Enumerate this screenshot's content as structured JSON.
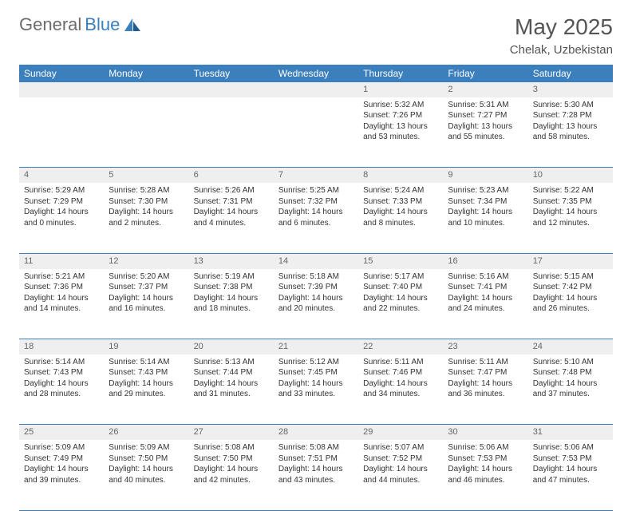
{
  "logo": {
    "part1": "General",
    "part2": "Blue"
  },
  "title": "May 2025",
  "location": "Chelak, Uzbekistan",
  "colors": {
    "header_bg": "#3b7fbd",
    "header_text": "#ffffff",
    "daynum_bg": "#efefef",
    "daynum_text": "#666666",
    "cell_text": "#333333",
    "border": "#3b7fbd",
    "page_bg": "#ffffff",
    "logo_gray": "#6c6c6c",
    "logo_blue": "#3b7fbd"
  },
  "typography": {
    "title_fontsize": 28,
    "location_fontsize": 15,
    "header_fontsize": 12,
    "cell_fontsize": 10,
    "daynum_fontsize": 11
  },
  "weekdays": [
    "Sunday",
    "Monday",
    "Tuesday",
    "Wednesday",
    "Thursday",
    "Friday",
    "Saturday"
  ],
  "weeks": [
    {
      "nums": [
        "",
        "",
        "",
        "",
        "1",
        "2",
        "3"
      ],
      "cells": [
        {
          "sunrise": "",
          "sunset": "",
          "daylight": ""
        },
        {
          "sunrise": "",
          "sunset": "",
          "daylight": ""
        },
        {
          "sunrise": "",
          "sunset": "",
          "daylight": ""
        },
        {
          "sunrise": "",
          "sunset": "",
          "daylight": ""
        },
        {
          "sunrise": "Sunrise: 5:32 AM",
          "sunset": "Sunset: 7:26 PM",
          "daylight": "Daylight: 13 hours and 53 minutes."
        },
        {
          "sunrise": "Sunrise: 5:31 AM",
          "sunset": "Sunset: 7:27 PM",
          "daylight": "Daylight: 13 hours and 55 minutes."
        },
        {
          "sunrise": "Sunrise: 5:30 AM",
          "sunset": "Sunset: 7:28 PM",
          "daylight": "Daylight: 13 hours and 58 minutes."
        }
      ]
    },
    {
      "nums": [
        "4",
        "5",
        "6",
        "7",
        "8",
        "9",
        "10"
      ],
      "cells": [
        {
          "sunrise": "Sunrise: 5:29 AM",
          "sunset": "Sunset: 7:29 PM",
          "daylight": "Daylight: 14 hours and 0 minutes."
        },
        {
          "sunrise": "Sunrise: 5:28 AM",
          "sunset": "Sunset: 7:30 PM",
          "daylight": "Daylight: 14 hours and 2 minutes."
        },
        {
          "sunrise": "Sunrise: 5:26 AM",
          "sunset": "Sunset: 7:31 PM",
          "daylight": "Daylight: 14 hours and 4 minutes."
        },
        {
          "sunrise": "Sunrise: 5:25 AM",
          "sunset": "Sunset: 7:32 PM",
          "daylight": "Daylight: 14 hours and 6 minutes."
        },
        {
          "sunrise": "Sunrise: 5:24 AM",
          "sunset": "Sunset: 7:33 PM",
          "daylight": "Daylight: 14 hours and 8 minutes."
        },
        {
          "sunrise": "Sunrise: 5:23 AM",
          "sunset": "Sunset: 7:34 PM",
          "daylight": "Daylight: 14 hours and 10 minutes."
        },
        {
          "sunrise": "Sunrise: 5:22 AM",
          "sunset": "Sunset: 7:35 PM",
          "daylight": "Daylight: 14 hours and 12 minutes."
        }
      ]
    },
    {
      "nums": [
        "11",
        "12",
        "13",
        "14",
        "15",
        "16",
        "17"
      ],
      "cells": [
        {
          "sunrise": "Sunrise: 5:21 AM",
          "sunset": "Sunset: 7:36 PM",
          "daylight": "Daylight: 14 hours and 14 minutes."
        },
        {
          "sunrise": "Sunrise: 5:20 AM",
          "sunset": "Sunset: 7:37 PM",
          "daylight": "Daylight: 14 hours and 16 minutes."
        },
        {
          "sunrise": "Sunrise: 5:19 AM",
          "sunset": "Sunset: 7:38 PM",
          "daylight": "Daylight: 14 hours and 18 minutes."
        },
        {
          "sunrise": "Sunrise: 5:18 AM",
          "sunset": "Sunset: 7:39 PM",
          "daylight": "Daylight: 14 hours and 20 minutes."
        },
        {
          "sunrise": "Sunrise: 5:17 AM",
          "sunset": "Sunset: 7:40 PM",
          "daylight": "Daylight: 14 hours and 22 minutes."
        },
        {
          "sunrise": "Sunrise: 5:16 AM",
          "sunset": "Sunset: 7:41 PM",
          "daylight": "Daylight: 14 hours and 24 minutes."
        },
        {
          "sunrise": "Sunrise: 5:15 AM",
          "sunset": "Sunset: 7:42 PM",
          "daylight": "Daylight: 14 hours and 26 minutes."
        }
      ]
    },
    {
      "nums": [
        "18",
        "19",
        "20",
        "21",
        "22",
        "23",
        "24"
      ],
      "cells": [
        {
          "sunrise": "Sunrise: 5:14 AM",
          "sunset": "Sunset: 7:43 PM",
          "daylight": "Daylight: 14 hours and 28 minutes."
        },
        {
          "sunrise": "Sunrise: 5:14 AM",
          "sunset": "Sunset: 7:43 PM",
          "daylight": "Daylight: 14 hours and 29 minutes."
        },
        {
          "sunrise": "Sunrise: 5:13 AM",
          "sunset": "Sunset: 7:44 PM",
          "daylight": "Daylight: 14 hours and 31 minutes."
        },
        {
          "sunrise": "Sunrise: 5:12 AM",
          "sunset": "Sunset: 7:45 PM",
          "daylight": "Daylight: 14 hours and 33 minutes."
        },
        {
          "sunrise": "Sunrise: 5:11 AM",
          "sunset": "Sunset: 7:46 PM",
          "daylight": "Daylight: 14 hours and 34 minutes."
        },
        {
          "sunrise": "Sunrise: 5:11 AM",
          "sunset": "Sunset: 7:47 PM",
          "daylight": "Daylight: 14 hours and 36 minutes."
        },
        {
          "sunrise": "Sunrise: 5:10 AM",
          "sunset": "Sunset: 7:48 PM",
          "daylight": "Daylight: 14 hours and 37 minutes."
        }
      ]
    },
    {
      "nums": [
        "25",
        "26",
        "27",
        "28",
        "29",
        "30",
        "31"
      ],
      "cells": [
        {
          "sunrise": "Sunrise: 5:09 AM",
          "sunset": "Sunset: 7:49 PM",
          "daylight": "Daylight: 14 hours and 39 minutes."
        },
        {
          "sunrise": "Sunrise: 5:09 AM",
          "sunset": "Sunset: 7:50 PM",
          "daylight": "Daylight: 14 hours and 40 minutes."
        },
        {
          "sunrise": "Sunrise: 5:08 AM",
          "sunset": "Sunset: 7:50 PM",
          "daylight": "Daylight: 14 hours and 42 minutes."
        },
        {
          "sunrise": "Sunrise: 5:08 AM",
          "sunset": "Sunset: 7:51 PM",
          "daylight": "Daylight: 14 hours and 43 minutes."
        },
        {
          "sunrise": "Sunrise: 5:07 AM",
          "sunset": "Sunset: 7:52 PM",
          "daylight": "Daylight: 14 hours and 44 minutes."
        },
        {
          "sunrise": "Sunrise: 5:06 AM",
          "sunset": "Sunset: 7:53 PM",
          "daylight": "Daylight: 14 hours and 46 minutes."
        },
        {
          "sunrise": "Sunrise: 5:06 AM",
          "sunset": "Sunset: 7:53 PM",
          "daylight": "Daylight: 14 hours and 47 minutes."
        }
      ]
    }
  ]
}
